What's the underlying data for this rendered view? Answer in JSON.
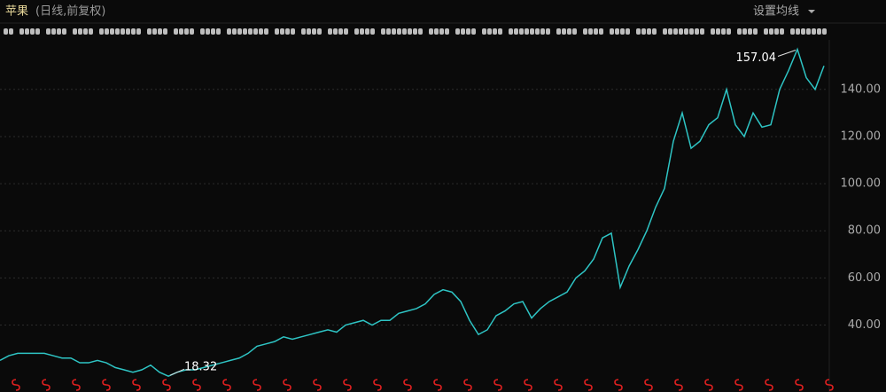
{
  "chart_data": {
    "type": "line",
    "title": "苹果",
    "subtitle": "(日线,前复权)",
    "series": [
      {
        "color": "#2ec4c4",
        "values": [
          25,
          27,
          28,
          28,
          28,
          28,
          27,
          26,
          26,
          24,
          24,
          25,
          24,
          22,
          21,
          20,
          21,
          23,
          20,
          18.32,
          20,
          21,
          21,
          22,
          23,
          24,
          25,
          26,
          28,
          31,
          32,
          33,
          35,
          34,
          35,
          36,
          37,
          38,
          37,
          40,
          41,
          42,
          40,
          42,
          42,
          45,
          46,
          47,
          49,
          53,
          55,
          54,
          50,
          42,
          36,
          38,
          44,
          46,
          49,
          50,
          43,
          47,
          50,
          52,
          54,
          60,
          63,
          68,
          77,
          79,
          56,
          65,
          72,
          80,
          90,
          98,
          118,
          130,
          115,
          118,
          125,
          128,
          140,
          125,
          120,
          130,
          124,
          125,
          140,
          148,
          157.04,
          145,
          140,
          150
        ]
      }
    ],
    "ylim": [
      18,
      161
    ],
    "yticks": [
      {
        "value": 40,
        "label": "40.00"
      },
      {
        "value": 60,
        "label": "60.00"
      },
      {
        "value": 80,
        "label": "80.00"
      },
      {
        "value": 100,
        "label": "100.00"
      },
      {
        "value": 120,
        "label": "120.00"
      },
      {
        "value": 140,
        "label": "140.00"
      }
    ],
    "grid": true,
    "annotations": [
      {
        "label": "157.04",
        "value": 157.04
      },
      {
        "label": "18.32",
        "value": 18.32
      }
    ]
  },
  "controls": {
    "ma_settings": "设置均线"
  }
}
